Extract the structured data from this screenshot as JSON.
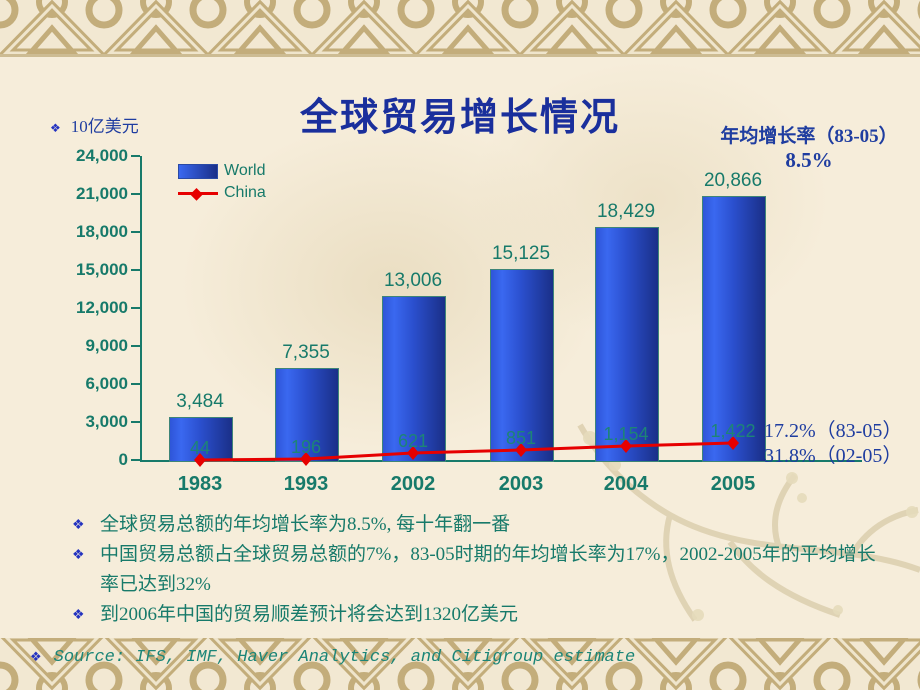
{
  "slide": {
    "title": "全球贸易增长情况",
    "unit_label": "10亿美元",
    "bullet_glyph": "❖"
  },
  "growth_note": {
    "title": "年均增长率（83-05）",
    "value": "8.5%"
  },
  "line_annotations": {
    "rate_83_05": "17.2%（83-05）",
    "rate_02_05": "31.8%（02-05）"
  },
  "chart_data": {
    "type": "bar",
    "title": "全球贸易增长情况",
    "ylabel": "10亿美元",
    "ylim": [
      0,
      24000
    ],
    "ytick_step": 3000,
    "yticks": [
      "24,000",
      "21,000",
      "18,000",
      "15,000",
      "12,000",
      "9,000",
      "6,000",
      "3,000",
      "0"
    ],
    "categories": [
      "1983",
      "1993",
      "2002",
      "2003",
      "2004",
      "2005"
    ],
    "series": [
      {
        "name": "World",
        "type": "bar",
        "color": "#2b50cf",
        "values": [
          3484,
          7355,
          13006,
          15125,
          18429,
          20866
        ],
        "labels": [
          "3,484",
          "7,355",
          "13,006",
          "15,125",
          "18,429",
          "20,866"
        ]
      },
      {
        "name": "China",
        "type": "line",
        "color": "#e60000",
        "values": [
          44,
          196,
          621,
          851,
          1154,
          1422
        ],
        "labels": [
          "44",
          "196",
          "621",
          "851",
          "1,154",
          "1,422"
        ]
      }
    ],
    "legend_position": "top-left",
    "grid": false
  },
  "bullets": [
    "全球贸易总额的年均增长率为8.5%, 每十年翻一番",
    "中国贸易总额占全球贸易总额的7%，83-05时期的年均增长率为17%，2002-2005年的平均增长率已达到32%",
    "到2006年中国的贸易顺差预计将会达到1320亿美元"
  ],
  "footer": {
    "source": "Source: IFS, IMF, Haver Analytics, and Citigroup estimate"
  },
  "colors": {
    "accent_teal": "#177a6a",
    "accent_blue": "#1f3da0",
    "title_blue": "#1a2f9c",
    "bar_blue": "#2b50cf",
    "line_red": "#e60000",
    "border_tan": "#c3ad7b",
    "background": "#f6edda"
  }
}
